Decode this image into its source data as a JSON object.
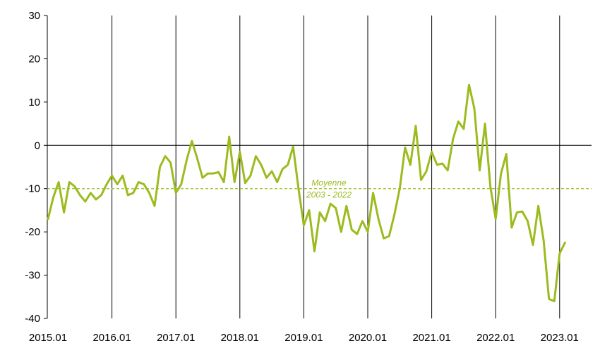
{
  "chart_data": {
    "type": "line",
    "title": "",
    "xlabel": "",
    "ylabel": "",
    "ylim": [
      -40,
      30
    ],
    "yticks": [
      30,
      20,
      10,
      0,
      -10,
      -20,
      -30,
      -40
    ],
    "x_tick_labels": [
      "2015.01",
      "2016.01",
      "2017.01",
      "2018.01",
      "2019.01",
      "2020.01",
      "2021.01",
      "2022.01",
      "2023.01"
    ],
    "x_start": "2015.01",
    "colors": {
      "series": "#9bbb1e",
      "axis": "#000000"
    },
    "grid": "vertical lines at each year",
    "reference_line": {
      "value": -10,
      "label_line1": "Moyenne",
      "label_line2": "2003 - 2022",
      "style": "dashed"
    },
    "series": [
      {
        "values": [
          -17,
          -12,
          -8.5,
          -15.5,
          -8.5,
          -9.5,
          -11.5,
          -13,
          -11,
          -12.5,
          -11.5,
          -9,
          -7,
          -9,
          -7,
          -11.5,
          -11,
          -8.5,
          -9,
          -11,
          -14,
          -5,
          -2.5,
          -4,
          -11,
          -9,
          -3.5,
          1,
          -3,
          -7.5,
          -6.5,
          -6.5,
          -6.2,
          -8.5,
          2,
          -8.5,
          -1.5,
          -8.7,
          -7,
          -2.5,
          -4.5,
          -7.5,
          -6,
          -8.5,
          -5.5,
          -4.5,
          -0.3,
          -10,
          -18.5,
          -15,
          -24.5,
          -15.5,
          -17.5,
          -13.5,
          -14.5,
          -20,
          -14,
          -19.5,
          -20.5,
          -17.5,
          -20,
          -11,
          -17,
          -21.5,
          -21,
          -16,
          -10,
          -0.5,
          -4.5,
          4.5,
          -8,
          -6,
          -1.5,
          -4.5,
          -4.2,
          -5.8,
          1.5,
          5.5,
          3.8,
          14,
          8.5,
          -5.8,
          5,
          -9.5,
          -17,
          -6.5,
          -2,
          -19,
          -15.5,
          -15.3,
          -17.5,
          -23,
          -14,
          -22,
          -35.5,
          -36,
          -25,
          -22.5
        ]
      }
    ]
  }
}
